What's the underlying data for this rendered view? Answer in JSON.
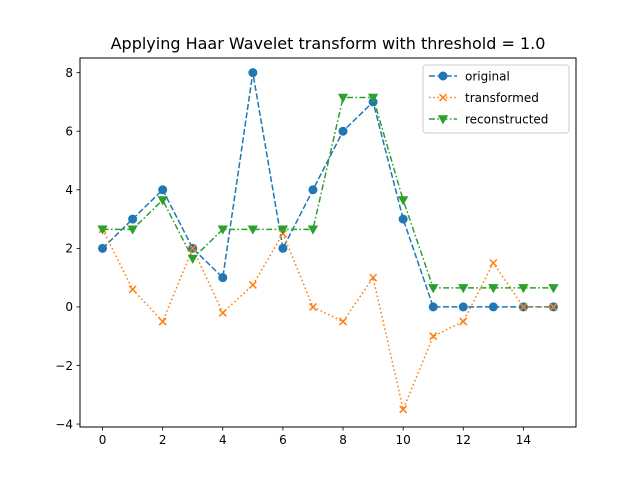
{
  "chart_data": {
    "type": "line",
    "title": "Applying Haar Wavelet transform with threshold = 1.0",
    "xlabel": "",
    "ylabel": "",
    "xlim": [
      -0.75,
      15.75
    ],
    "ylim": [
      -4.1,
      8.5
    ],
    "x_ticks": [
      0,
      2,
      4,
      6,
      8,
      10,
      12,
      14
    ],
    "y_ticks": [
      -4,
      -2,
      0,
      2,
      4,
      6,
      8
    ],
    "grid": false,
    "legend_position": "top-right",
    "x": [
      0,
      1,
      2,
      3,
      4,
      5,
      6,
      7,
      8,
      9,
      10,
      11,
      12,
      13,
      14,
      15
    ],
    "series": [
      {
        "name": "original",
        "color": "#1f77b4",
        "line_style": "dashed",
        "marker": "circle",
        "values": [
          2,
          3,
          4,
          2,
          1,
          8,
          2,
          4,
          6,
          7,
          3,
          0,
          0,
          0,
          0,
          0
        ]
      },
      {
        "name": "transformed",
        "color": "#ff7f0e",
        "line_style": "dotted",
        "marker": "x",
        "values": [
          2.65,
          0.6,
          -0.5,
          2.0,
          -0.2,
          0.75,
          2.5,
          0.0,
          -0.5,
          1.0,
          -3.5,
          -1.0,
          -0.5,
          1.5,
          0.0,
          0.0
        ]
      },
      {
        "name": "reconstructed",
        "color": "#2ca02c",
        "line_style": "dashdot",
        "marker": "triangle-down",
        "values": [
          2.65,
          2.65,
          3.65,
          1.65,
          2.65,
          2.65,
          2.65,
          2.65,
          7.15,
          7.15,
          3.65,
          0.65,
          0.65,
          0.65,
          0.65,
          0.65
        ]
      }
    ]
  }
}
